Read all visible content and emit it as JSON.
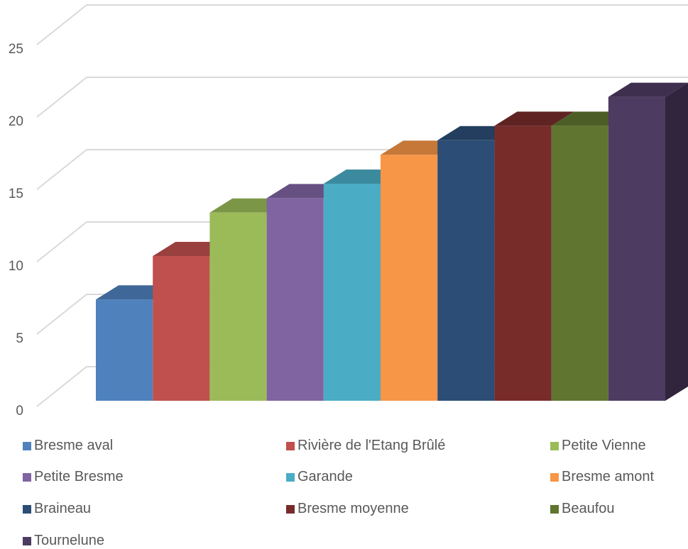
{
  "chart_data": {
    "type": "bar",
    "categories": [
      "Bresme aval",
      "Rivière de l'Etang Brûlé",
      "Petite Vienne",
      "Petite Bresme",
      "Garande",
      "Bresme amont",
      "Braineau",
      "Bresme moyenne",
      "Beaufou",
      "Tournelune"
    ],
    "series": [
      {
        "name": "Bresme aval",
        "value": 7,
        "color": "#4F81BD"
      },
      {
        "name": "Rivière de l'Etang Brûlé",
        "value": 10,
        "color": "#C0504D"
      },
      {
        "name": "Petite Vienne",
        "value": 13,
        "color": "#9BBB59"
      },
      {
        "name": "Petite Bresme",
        "value": 14,
        "color": "#8064A2"
      },
      {
        "name": "Garande",
        "value": 15,
        "color": "#4BACC6"
      },
      {
        "name": "Bresme amont",
        "value": 17,
        "color": "#F79646"
      },
      {
        "name": "Braineau",
        "value": 18,
        "color": "#2C4D75"
      },
      {
        "name": "Bresme moyenne",
        "value": 19,
        "color": "#772C2A"
      },
      {
        "name": "Beaufou",
        "value": 19,
        "color": "#5F7530"
      },
      {
        "name": "Tournelune",
        "value": 21,
        "color": "#4D3B62"
      }
    ],
    "yticks": [
      "0",
      "5",
      "10",
      "15",
      "20",
      "25"
    ],
    "ylim": [
      0,
      25
    ],
    "grid": true,
    "three_d": true,
    "legend_position": "bottom"
  }
}
